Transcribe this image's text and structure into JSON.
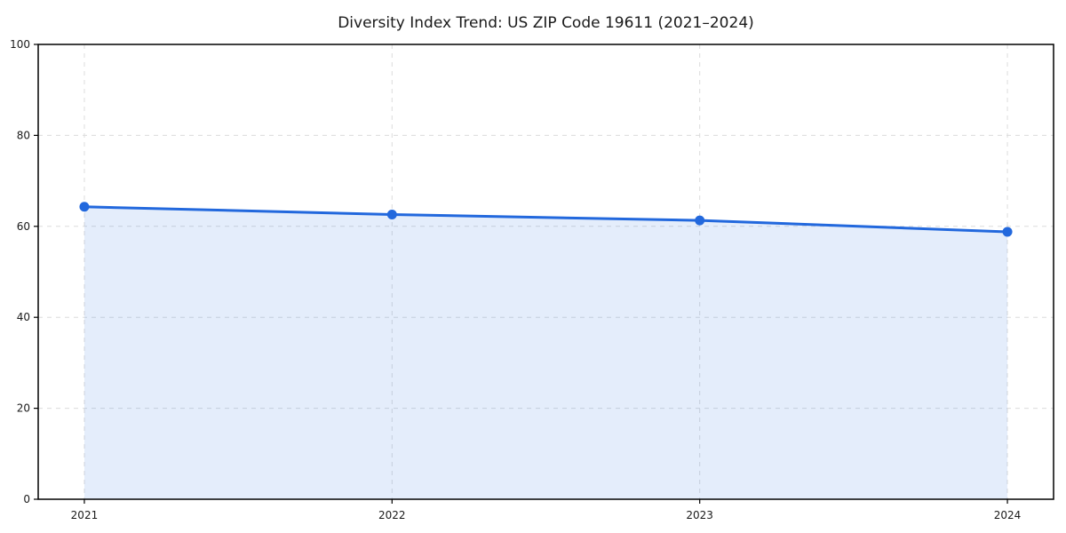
{
  "chart_data": {
    "type": "area",
    "title": "Diversity Index Trend: US ZIP Code 19611 (2021–2024)",
    "x": [
      2021,
      2022,
      2023,
      2024
    ],
    "xticks": [
      "2021",
      "2022",
      "2023",
      "2024"
    ],
    "series": [
      {
        "name": "Diversity Index",
        "values": [
          64.3,
          62.6,
          61.3,
          58.8
        ]
      }
    ],
    "ylim": [
      0,
      100
    ],
    "yticks": [
      0,
      20,
      40,
      60,
      80,
      100
    ],
    "grid": true,
    "grid_style": "dashed",
    "legend": "none",
    "colors": {
      "line": "#2268dd",
      "marker": "#2268dd",
      "fill": "rgba(34,104,221,0.12)",
      "grid": "#dcdcdc",
      "spine": "#000000",
      "background": "#ffffff",
      "text": "#1a1a1a"
    }
  }
}
